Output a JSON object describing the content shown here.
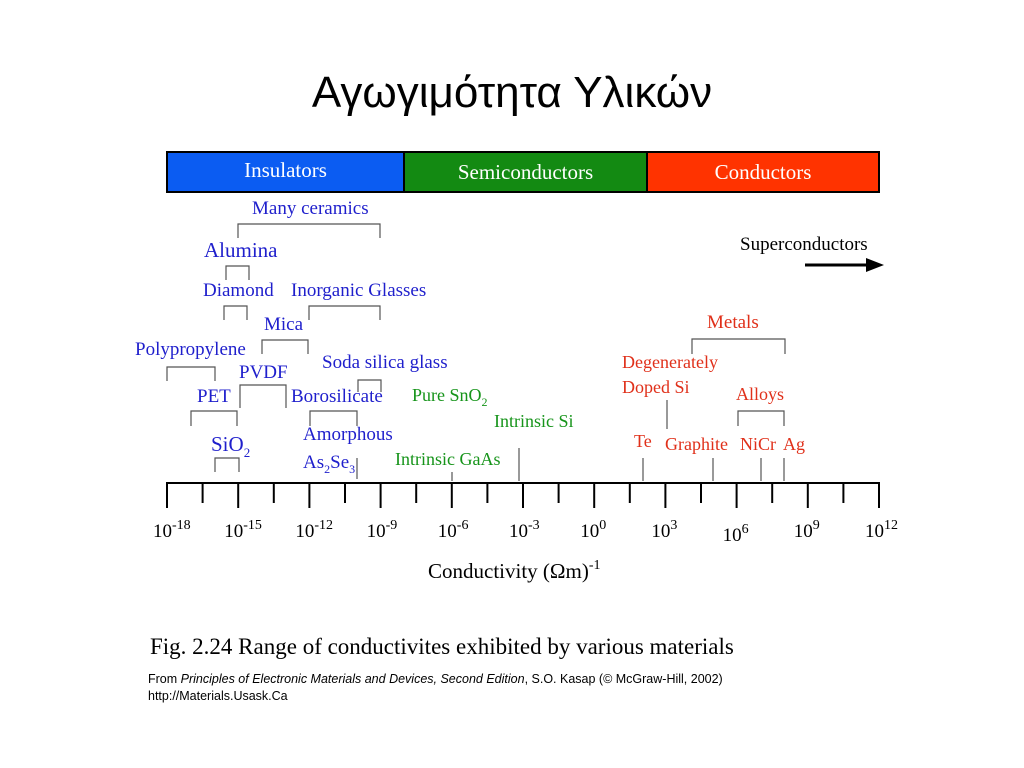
{
  "title": "Αγωγιμότητα Υλικών",
  "bands": [
    {
      "label": "Insulators",
      "color": "#0b5cf2"
    },
    {
      "label": "Semiconductors",
      "color": "#138a12"
    },
    {
      "label": "Conductors",
      "color": "#ff3300"
    }
  ],
  "colors": {
    "insulator_text": "#1f1fcc",
    "semiconductor_text": "#16941a",
    "conductor_text": "#e0301a",
    "axis": "#000000"
  },
  "materials": {
    "many_ceramics": "Many ceramics",
    "alumina": "Alumina",
    "diamond": "Diamond",
    "inorganic_glasses": "Inorganic Glasses",
    "mica": "Mica",
    "polypropylene": "Polypropylene",
    "pvdf": "PVDF",
    "soda_silica_glass": "Soda silica glass",
    "pet": "PET",
    "borosilicate": "Borosilicate",
    "sio2_base": "SiO",
    "sio2_sub": "2",
    "amorphous": "Amorphous",
    "as2se3_a": "As",
    "as2se3_sub1": "2",
    "as2se3_b": "Se",
    "as2se3_sub2": "3",
    "pure_sno2_base": "Pure SnO",
    "pure_sno2_sub": "2",
    "intrinsic_si": "Intrinsic Si",
    "intrinsic_gaas": "Intrinsic GaAs",
    "metals": "Metals",
    "degenerately": "Degenerately",
    "doped_si": "Doped Si",
    "alloys": "Alloys",
    "te": "Te",
    "graphite": "Graphite",
    "nicr": "NiCr",
    "ag": "Ag",
    "superconductors": "Superconductors"
  },
  "axis": {
    "base": "10",
    "exponents": [
      "-18",
      "-15",
      "-12",
      "-9",
      "-6",
      "-3",
      "0",
      "3",
      "6",
      "9",
      "12"
    ],
    "label_main": "Conductivity (Ωm)",
    "label_exp": "-1"
  },
  "caption": "Fig. 2.24 Range of conductivites exhibited by various materials",
  "source": {
    "prefix": "From ",
    "book": "Principles of Electronic Materials and Devices, Second Edition",
    "suffix": ", S.O. Kasap (© McGraw-Hill, 2002)",
    "url": "http://Materials.Usask.Ca"
  }
}
